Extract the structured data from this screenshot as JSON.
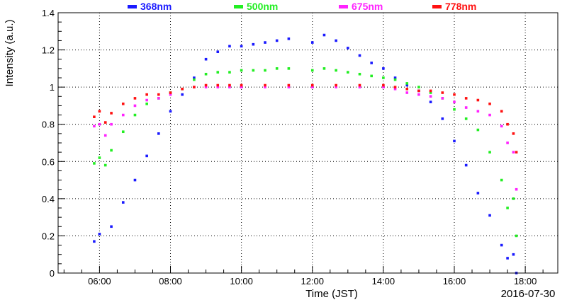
{
  "chart_data": {
    "type": "scatter",
    "title": "",
    "xlabel": "Time (JST)",
    "ylabel": "Intensity (a.u.)",
    "date_label": "2016-07-30",
    "xlim": [
      "04:50",
      "18:55"
    ],
    "ylim": [
      0,
      1.4
    ],
    "x_tick_labels": [
      "06:00",
      "08:00",
      "10:00",
      "12:00",
      "14:00",
      "16:00",
      "18:00"
    ],
    "y_tick_labels": [
      "0",
      "0.2",
      "0.4",
      "0.6",
      "0.8",
      "1",
      "1.2",
      "1.4"
    ],
    "y_ticks": [
      0,
      0.2,
      0.4,
      0.6,
      0.8,
      1.0,
      1.2,
      1.4
    ],
    "grid": true,
    "legend_position": "top",
    "series": [
      {
        "name": "368nm",
        "color": "#1a1aff",
        "x": [
          "05:51",
          "06:00",
          "06:20",
          "06:40",
          "07:00",
          "07:20",
          "07:40",
          "08:00",
          "08:20",
          "08:40",
          "09:00",
          "09:20",
          "09:40",
          "10:00",
          "10:20",
          "10:40",
          "11:00",
          "11:20",
          "12:00",
          "12:20",
          "12:40",
          "13:00",
          "13:20",
          "13:40",
          "14:00",
          "14:20",
          "14:40",
          "15:00",
          "15:20",
          "15:40",
          "16:00",
          "16:20",
          "16:40",
          "17:00",
          "17:20",
          "17:30",
          "17:40",
          "17:45"
        ],
        "y": [
          0.17,
          0.21,
          0.25,
          0.38,
          0.5,
          0.63,
          0.75,
          0.87,
          0.96,
          1.05,
          1.15,
          1.19,
          1.22,
          1.22,
          1.23,
          1.24,
          1.25,
          1.26,
          1.24,
          1.28,
          1.25,
          1.21,
          1.17,
          1.13,
          1.1,
          1.05,
          1.01,
          0.98,
          0.92,
          0.83,
          0.71,
          0.58,
          0.43,
          0.31,
          0.15,
          0.08,
          0.1,
          0.0
        ]
      },
      {
        "name": "500nm",
        "color": "#22ee22",
        "x": [
          "05:51",
          "06:00",
          "06:10",
          "06:20",
          "06:40",
          "07:00",
          "07:20",
          "07:40",
          "08:00",
          "08:20",
          "08:40",
          "09:00",
          "09:20",
          "09:40",
          "10:00",
          "10:20",
          "10:40",
          "11:00",
          "11:20",
          "12:00",
          "12:20",
          "12:40",
          "13:00",
          "13:20",
          "13:40",
          "14:00",
          "14:20",
          "14:40",
          "15:00",
          "15:20",
          "15:40",
          "16:00",
          "16:20",
          "16:40",
          "17:00",
          "17:20",
          "17:30",
          "17:40",
          "17:45"
        ],
        "y": [
          0.59,
          0.62,
          0.58,
          0.66,
          0.76,
          0.85,
          0.91,
          0.94,
          0.97,
          0.99,
          1.04,
          1.07,
          1.08,
          1.08,
          1.09,
          1.09,
          1.09,
          1.1,
          1.1,
          1.09,
          1.1,
          1.09,
          1.08,
          1.07,
          1.06,
          1.05,
          1.04,
          1.02,
          1.0,
          0.97,
          0.94,
          0.88,
          0.83,
          0.77,
          0.65,
          0.5,
          0.35,
          0.4,
          0.2
        ]
      },
      {
        "name": "675nm",
        "color": "#ff22ff",
        "x": [
          "05:51",
          "06:00",
          "06:10",
          "06:20",
          "06:40",
          "07:00",
          "07:20",
          "07:40",
          "08:00",
          "08:20",
          "08:40",
          "09:00",
          "09:20",
          "09:40",
          "10:00",
          "10:40",
          "11:20",
          "12:00",
          "12:40",
          "13:20",
          "14:00",
          "14:20",
          "14:40",
          "15:00",
          "15:20",
          "15:40",
          "16:00",
          "16:20",
          "16:40",
          "17:00",
          "17:20",
          "17:30",
          "17:40",
          "17:45"
        ],
        "y": [
          0.79,
          0.8,
          0.74,
          0.8,
          0.85,
          0.9,
          0.93,
          0.94,
          0.96,
          0.99,
          1.0,
          1.0,
          1.0,
          1.0,
          1.0,
          1.0,
          1.0,
          1.0,
          1.0,
          1.0,
          1.0,
          0.99,
          0.97,
          0.96,
          0.95,
          0.94,
          0.92,
          0.89,
          0.87,
          0.85,
          0.79,
          0.7,
          0.65,
          0.45
        ]
      },
      {
        "name": "778nm",
        "color": "#ff1111",
        "x": [
          "05:51",
          "06:00",
          "06:10",
          "06:20",
          "06:40",
          "07:00",
          "07:20",
          "07:40",
          "08:00",
          "08:20",
          "08:40",
          "09:00",
          "09:20",
          "09:40",
          "10:00",
          "10:40",
          "11:20",
          "12:00",
          "12:40",
          "13:20",
          "14:00",
          "14:20",
          "14:40",
          "15:00",
          "15:20",
          "15:40",
          "16:00",
          "16:20",
          "16:40",
          "17:00",
          "17:20",
          "17:30",
          "17:40",
          "17:45"
        ],
        "y": [
          0.84,
          0.87,
          0.81,
          0.86,
          0.91,
          0.94,
          0.96,
          0.96,
          0.97,
          0.99,
          1.0,
          1.01,
          1.01,
          1.01,
          1.01,
          1.01,
          1.01,
          1.01,
          1.01,
          1.01,
          1.01,
          1.0,
          0.99,
          0.98,
          0.98,
          0.97,
          0.96,
          0.94,
          0.93,
          0.91,
          0.87,
          0.8,
          0.75,
          0.65
        ]
      }
    ]
  }
}
